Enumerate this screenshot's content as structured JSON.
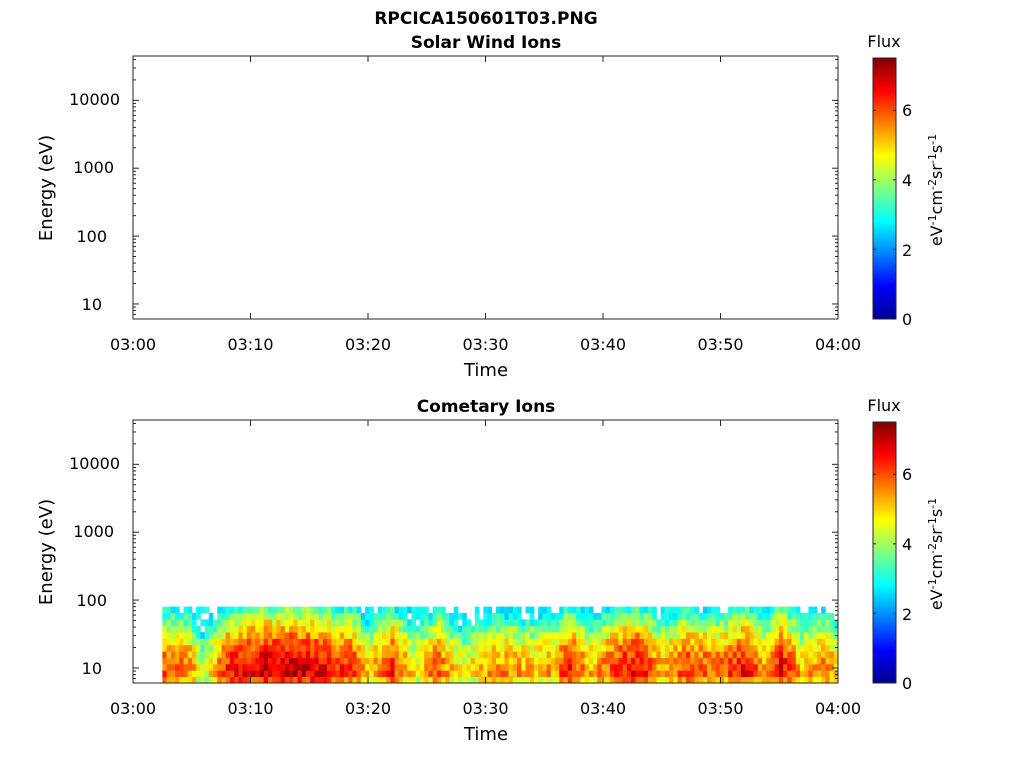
{
  "figure_title": "RPCICA150601T03.PNG",
  "chart_data": [
    {
      "type": "heatmap",
      "title": "Solar Wind Ions",
      "xlabel": "Time",
      "ylabel": "Energy (eV)",
      "x_ticks": [
        "03:00",
        "03:10",
        "03:20",
        "03:30",
        "03:40",
        "03:50",
        "04:00"
      ],
      "xlim": [
        "03:00",
        "04:00"
      ],
      "y_scale": "log",
      "y_ticks": [
        10,
        100,
        1000,
        10000
      ],
      "ylim": [
        6,
        45000
      ],
      "colorbar": {
        "title": "Flux",
        "label": "eV^-1cm^-2sr^-1s^-1",
        "ticks": [
          0,
          2,
          4,
          6
        ],
        "range": [
          0,
          7.5
        ],
        "colormap": "jet"
      },
      "data": []
    },
    {
      "type": "heatmap",
      "title": "Cometary Ions",
      "xlabel": "Time",
      "ylabel": "Energy (eV)",
      "x_ticks": [
        "03:00",
        "03:10",
        "03:20",
        "03:30",
        "03:40",
        "03:50",
        "04:00"
      ],
      "xlim": [
        "03:00",
        "04:00"
      ],
      "y_scale": "log",
      "y_ticks": [
        10,
        100,
        1000,
        10000
      ],
      "ylim": [
        6,
        45000
      ],
      "colorbar": {
        "title": "Flux",
        "label": "eV^-1cm^-2sr^-1s^-1",
        "ticks": [
          0,
          2,
          4,
          6
        ],
        "range": [
          0,
          7.5
        ],
        "colormap": "jet"
      },
      "data_time_range": [
        "03:02:30",
        "04:00"
      ],
      "data_energy_range": [
        6,
        80
      ],
      "flux_profile": [
        {
          "time": "03:03",
          "flux": 6.0
        },
        {
          "time": "03:05",
          "flux": 5.6
        },
        {
          "time": "03:06",
          "flux": 4.2
        },
        {
          "time": "03:08",
          "flux": 6.4
        },
        {
          "time": "03:11",
          "flux": 6.9
        },
        {
          "time": "03:13",
          "flux": 7.0
        },
        {
          "time": "03:15",
          "flux": 6.8
        },
        {
          "time": "03:17",
          "flux": 6.5
        },
        {
          "time": "03:19",
          "flux": 6.2
        },
        {
          "time": "03:20",
          "flux": 5.0
        },
        {
          "time": "03:22",
          "flux": 6.4
        },
        {
          "time": "03:24",
          "flux": 4.8
        },
        {
          "time": "03:26",
          "flux": 6.0
        },
        {
          "time": "03:28",
          "flux": 4.6
        },
        {
          "time": "03:30",
          "flux": 5.4
        },
        {
          "time": "03:32",
          "flux": 5.6
        },
        {
          "time": "03:34",
          "flux": 5.2
        },
        {
          "time": "03:36",
          "flux": 5.5
        },
        {
          "time": "03:37",
          "flux": 6.6
        },
        {
          "time": "03:39",
          "flux": 5.2
        },
        {
          "time": "03:41",
          "flux": 6.2
        },
        {
          "time": "03:43",
          "flux": 6.7
        },
        {
          "time": "03:45",
          "flux": 5.3
        },
        {
          "time": "03:47",
          "flux": 6.2
        },
        {
          "time": "03:50",
          "flux": 5.8
        },
        {
          "time": "03:52",
          "flux": 6.6
        },
        {
          "time": "03:54",
          "flux": 5.4
        },
        {
          "time": "03:55",
          "flux": 6.8
        },
        {
          "time": "03:57",
          "flux": 5.2
        },
        {
          "time": "03:59",
          "flux": 5.8
        },
        {
          "time": "04:00",
          "flux": 5.0
        }
      ]
    }
  ]
}
